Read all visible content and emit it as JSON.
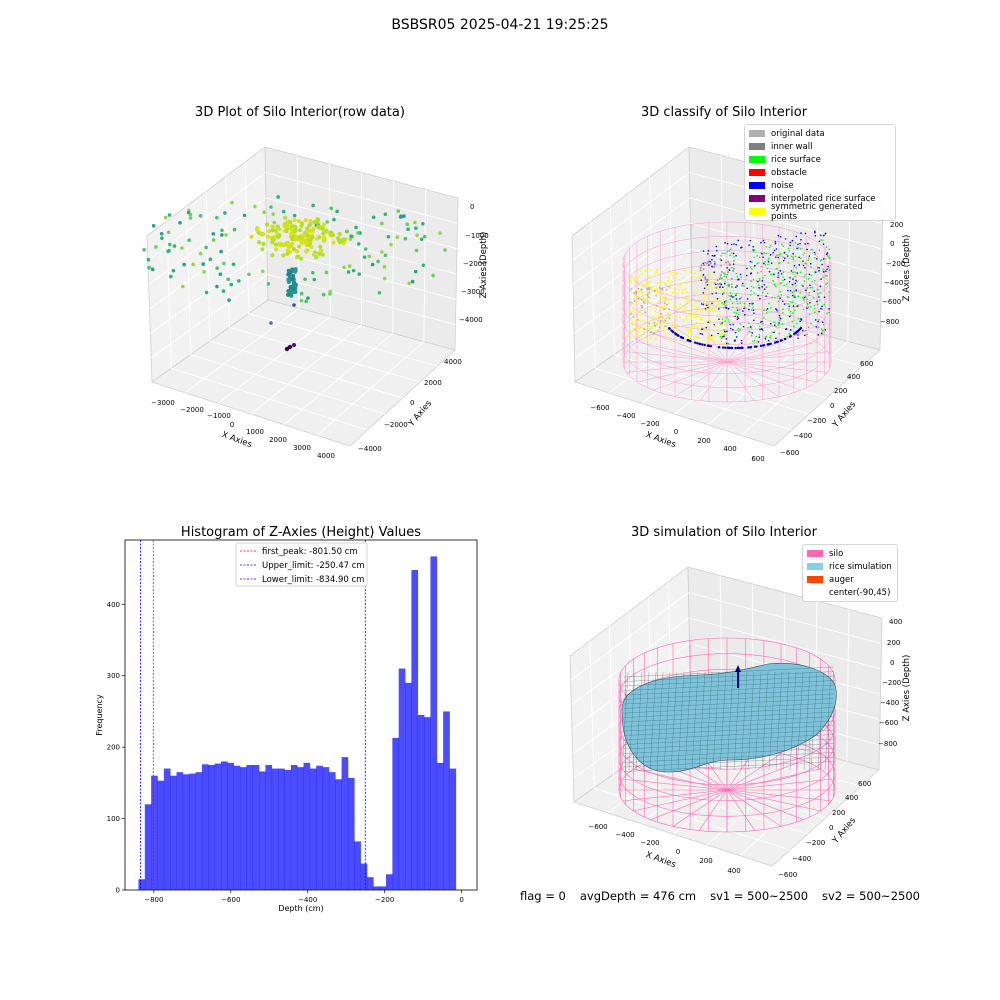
{
  "figure_title": "BSBSR05 2025-04-21 19:25:25",
  "status_line": {
    "flag": "flag = 0",
    "avg_depth": "avgDepth = 476 cm",
    "sv1": "sv1 = 500~2500",
    "sv2": "sv2 = 500~2500"
  },
  "chart_data": [
    {
      "type": "scatter",
      "title": "3D Plot of Silo Interior(row data)",
      "xlabel": "X Axies",
      "ylabel": "Y Axies",
      "zlabel": "Z Axies (Depth)",
      "x_ticks": [
        "−3000",
        "−2000",
        "−1000",
        "0",
        "1000",
        "2000",
        "3000",
        "4000"
      ],
      "y_ticks": [
        "−4000",
        "−2000",
        "0",
        "2000",
        "4000"
      ],
      "z_ticks": [
        "0",
        "−1000",
        "−2000",
        "−3000",
        "−4000"
      ],
      "colormap": "viridis (colored by depth)",
      "grid": true
    },
    {
      "type": "scatter",
      "title": "3D classify of Silo Interior",
      "xlabel": "X Axies",
      "ylabel": "Y Axies",
      "zlabel": "Z Axies (Depth)",
      "x_ticks": [
        "−600",
        "−400",
        "−200",
        "0",
        "200",
        "400",
        "600"
      ],
      "y_ticks": [
        "−600",
        "−400",
        "−200",
        "0",
        "200",
        "400",
        "600"
      ],
      "z_ticks": [
        "200",
        "0",
        "−200",
        "−400",
        "−600",
        "−800"
      ],
      "legend_position": "upper-right",
      "legend": [
        {
          "label": "original data",
          "color": "#b0b0b0"
        },
        {
          "label": "inner wall",
          "color": "#808080"
        },
        {
          "label": "rice surface",
          "color": "#00ff00"
        },
        {
          "label": "obstacle",
          "color": "#ff0000"
        },
        {
          "label": "noise",
          "color": "#0000ff"
        },
        {
          "label": "interpolated rice surface",
          "color": "#800080"
        },
        {
          "label": "symmetric generated points",
          "color": "#ffff00"
        }
      ],
      "grid": true
    },
    {
      "type": "bar",
      "title": "Histogram of Z-Axies (Height) Values",
      "xlabel": "Depth (cm)",
      "ylabel": "Frequency",
      "bar_color": "#0000ff",
      "bin_start": -840,
      "bin_width": 16.5,
      "values": [
        15,
        120,
        160,
        153,
        170,
        160,
        165,
        162,
        163,
        165,
        176,
        175,
        177,
        180,
        178,
        174,
        172,
        175,
        175,
        166,
        175,
        170,
        170,
        168,
        175,
        172,
        178,
        170,
        174,
        172,
        165,
        155,
        186,
        157,
        68,
        37,
        18,
        5,
        5,
        22,
        213,
        310,
        290,
        448,
        245,
        242,
        467,
        178,
        250,
        170
      ],
      "x_ticks": [
        -800,
        -600,
        -400,
        -200,
        0
      ],
      "x_tick_labels": [
        "−800",
        "−600",
        "−400",
        "−200",
        "0"
      ],
      "y_ticks": [
        0,
        100,
        200,
        300,
        400
      ],
      "xlim": [
        -875,
        40
      ],
      "ylim": [
        0,
        490
      ],
      "reference_lines": [
        {
          "label": "first_peak: -801.50 cm",
          "value": -801.5,
          "color": "#ff0000"
        },
        {
          "label": "Upper_limit: -250.47 cm",
          "value": -250.47,
          "color": "#0000ff"
        },
        {
          "label": "Lower_limit: -834.90 cm",
          "value": -834.9,
          "color": "#0000ff"
        }
      ],
      "legend_position": "upper-center"
    },
    {
      "type": "surface",
      "title": "3D simulation of Silo Interior",
      "xlabel": "X Axies",
      "ylabel": "Y Axies",
      "zlabel": "Z Axies (Depth)",
      "x_ticks": [
        "−600",
        "−400",
        "−200",
        "0",
        "200",
        "400"
      ],
      "y_ticks": [
        "−600",
        "−400",
        "−200",
        "0",
        "200",
        "400",
        "600"
      ],
      "z_ticks": [
        "400",
        "200",
        "0",
        "−200",
        "−400",
        "−600",
        "−800"
      ],
      "legend_position": "upper-right",
      "legend": [
        {
          "label": "silo",
          "color": "#ff69b4"
        },
        {
          "label": "rice simulation",
          "color": "#87ceeb"
        },
        {
          "label": "auger",
          "color": "#ff4500"
        },
        {
          "label": "center(-90,45)",
          "color": ""
        }
      ],
      "grid": true
    }
  ]
}
